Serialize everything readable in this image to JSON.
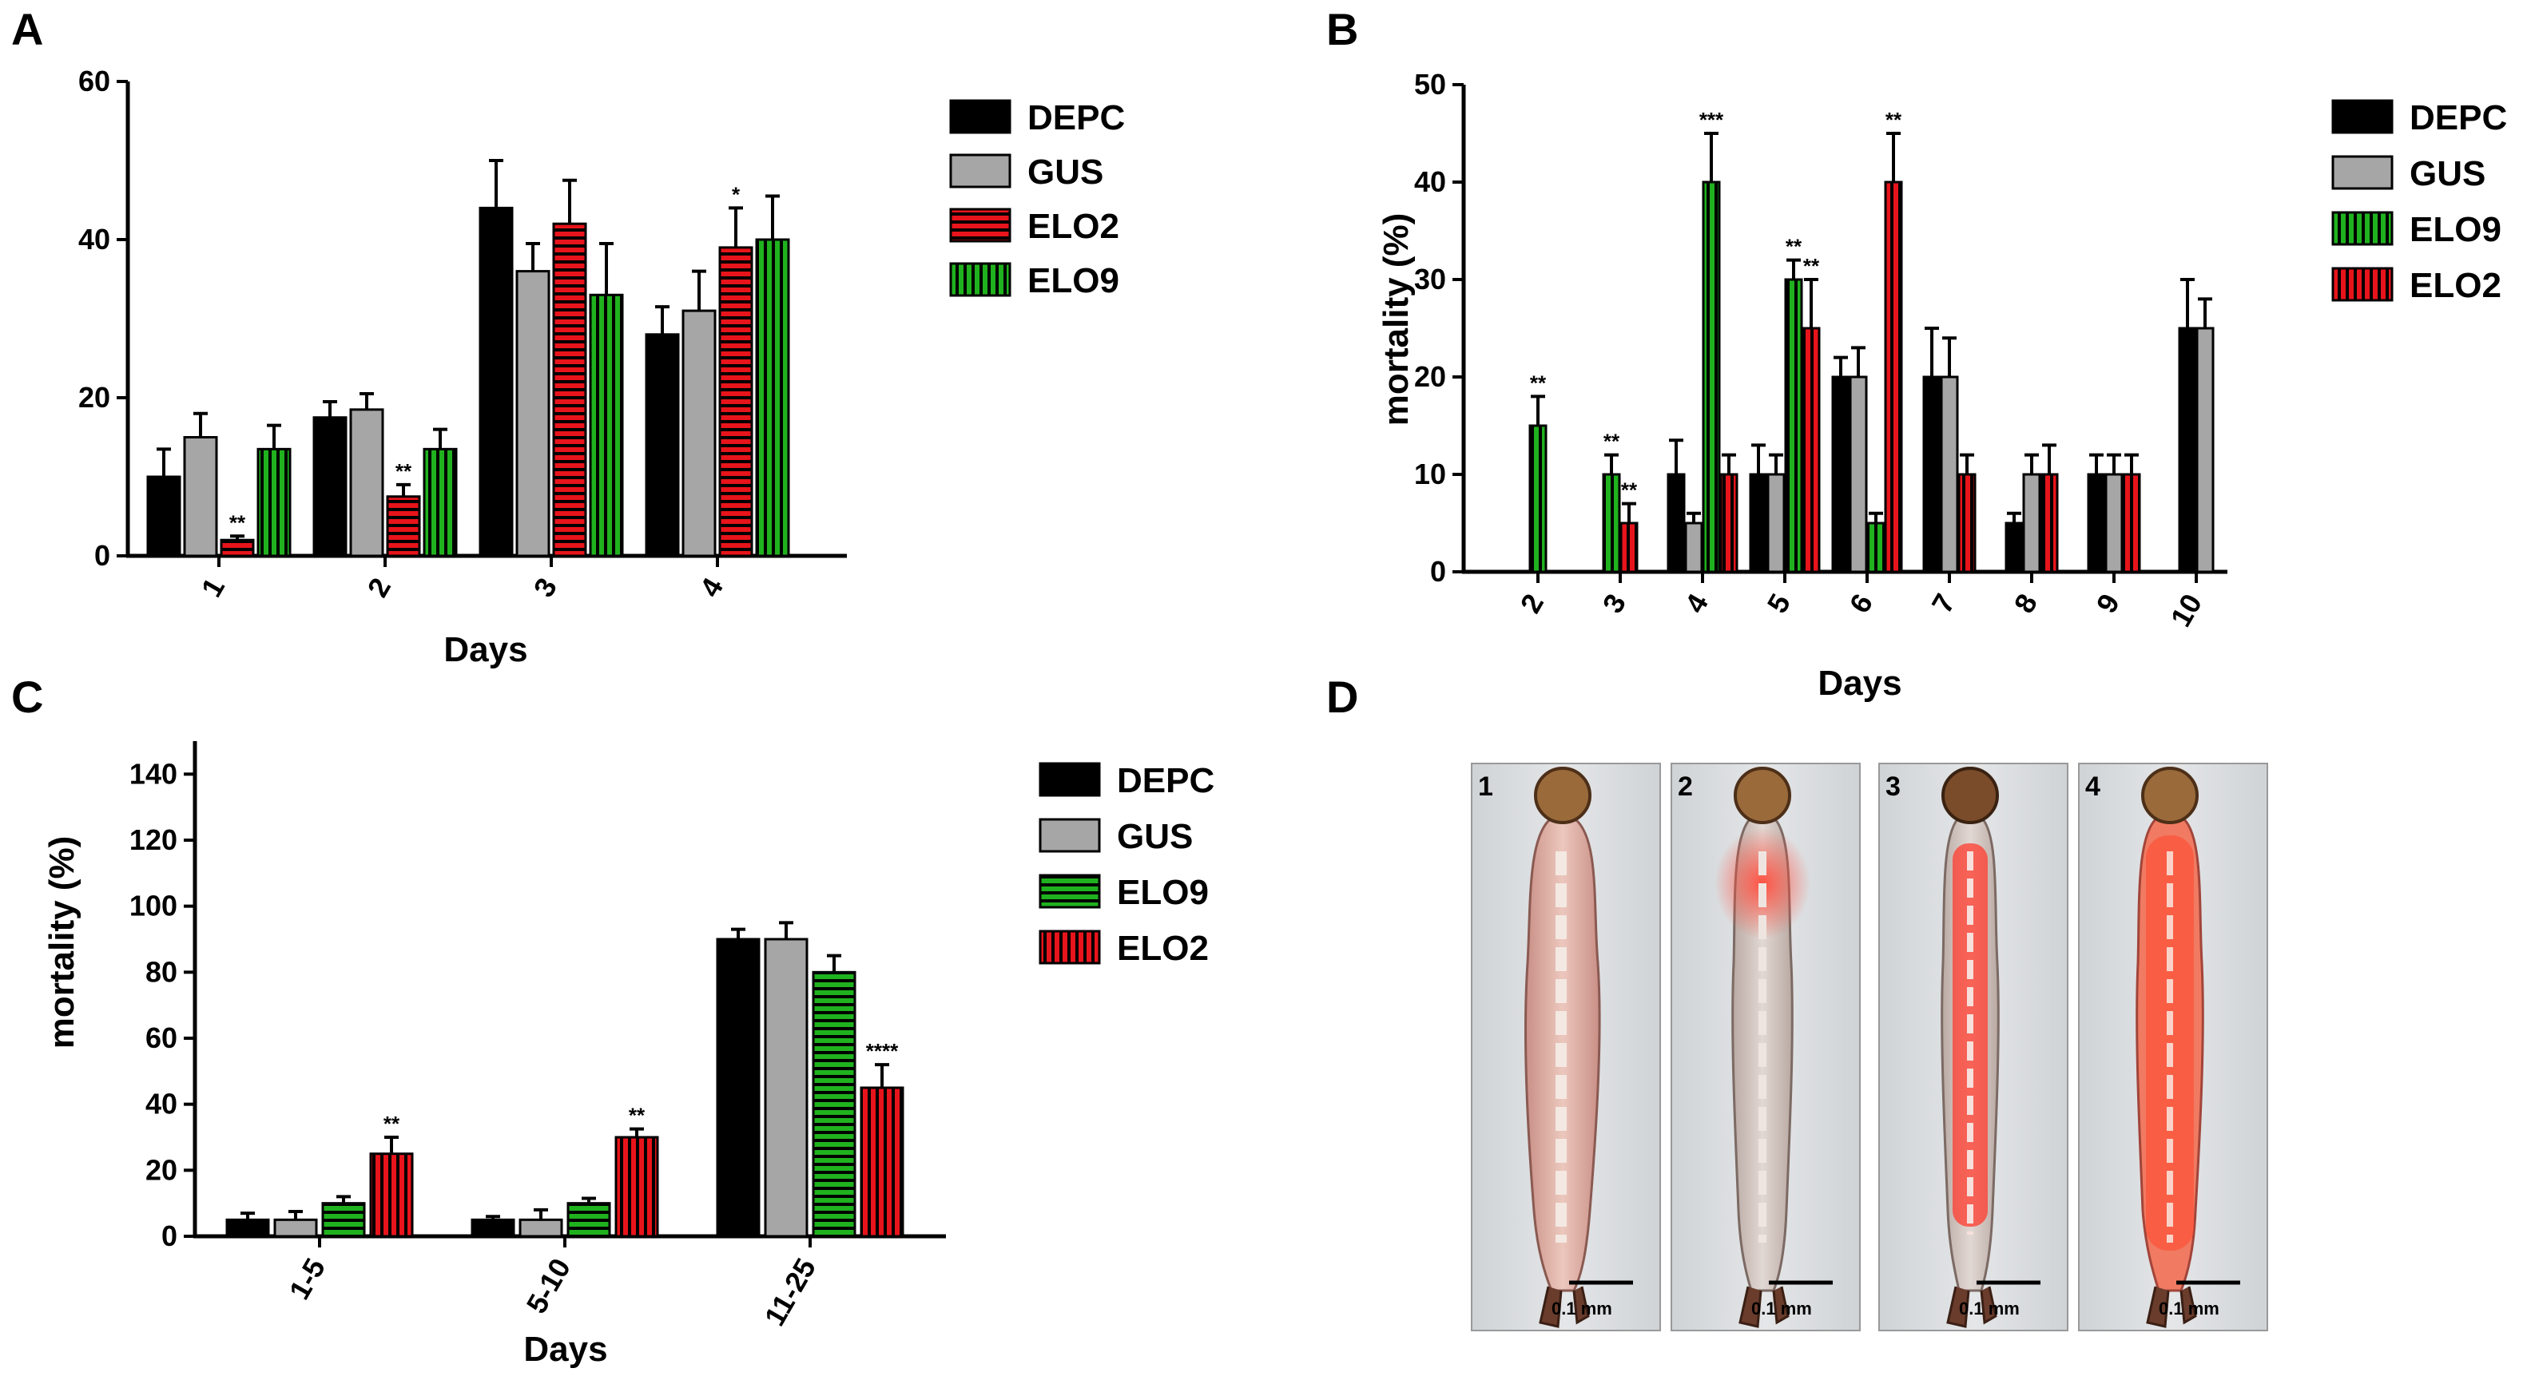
{
  "panels": {
    "a": {
      "letter": "A"
    },
    "b": {
      "letter": "B"
    },
    "c": {
      "letter": "C"
    },
    "d": {
      "letter": "D"
    }
  },
  "colors": {
    "DEPC": "#000000",
    "GUS": "#a6a6a6",
    "ELO2": "#e8141b",
    "ELO9": "#20b21e"
  },
  "chart_data": [
    {
      "id": "A",
      "type": "bar",
      "title": "",
      "xlabel": "Days",
      "ylabel": "",
      "ylim": [
        0,
        60
      ],
      "yticks": [
        0,
        20,
        40,
        60
      ],
      "categories": [
        "1",
        "2",
        "3",
        "4"
      ],
      "legend": [
        "DEPC",
        "GUS",
        "ELO2",
        "ELO9"
      ],
      "legend_position": "right",
      "series": [
        {
          "name": "DEPC",
          "pattern": "solid",
          "values": [
            10,
            17.5,
            44,
            28
          ],
          "errors": [
            3.5,
            2,
            6,
            3.5
          ]
        },
        {
          "name": "GUS",
          "pattern": "solid",
          "values": [
            15,
            18.5,
            36,
            31
          ],
          "errors": [
            3,
            2,
            3.5,
            5
          ]
        },
        {
          "name": "ELO2",
          "pattern": "horizontal",
          "values": [
            2,
            7.5,
            42,
            39
          ],
          "errors": [
            0.5,
            1.5,
            5.5,
            5
          ]
        },
        {
          "name": "ELO9",
          "pattern": "vertical",
          "values": [
            13.5,
            13.5,
            33,
            40
          ],
          "errors": [
            3,
            2.5,
            6.5,
            5.5
          ]
        }
      ],
      "annotations": [
        {
          "category": "1",
          "series": "ELO2",
          "text": "**"
        },
        {
          "category": "2",
          "series": "ELO2",
          "text": "**"
        },
        {
          "category": "4",
          "series": "ELO2",
          "text": "*"
        }
      ]
    },
    {
      "id": "B",
      "type": "bar",
      "title": "",
      "xlabel": "Days",
      "ylabel": "mortality (%)",
      "ylim": [
        0,
        50
      ],
      "yticks": [
        0,
        10,
        20,
        30,
        40,
        50
      ],
      "categories": [
        "2",
        "3",
        "4",
        "5",
        "6",
        "7",
        "8",
        "9",
        "10"
      ],
      "legend": [
        "DEPC",
        "GUS",
        "ELO9",
        "ELO2"
      ],
      "legend_position": "right",
      "series": [
        {
          "name": "DEPC",
          "pattern": "solid",
          "values": [
            0,
            0,
            10,
            10,
            20,
            20,
            5,
            10,
            25
          ],
          "errors": [
            0,
            0,
            3.5,
            3,
            2,
            5,
            1,
            2,
            5
          ]
        },
        {
          "name": "GUS",
          "pattern": "solid",
          "values": [
            0,
            0,
            5,
            10,
            20,
            20,
            10,
            10,
            25
          ],
          "errors": [
            0,
            0,
            1,
            2,
            3,
            4,
            2,
            2,
            3
          ]
        },
        {
          "name": "ELO9",
          "pattern": "vertical",
          "values": [
            15,
            10,
            40,
            30,
            5,
            0,
            0,
            0,
            0
          ],
          "errors": [
            3,
            2,
            5,
            2,
            1,
            0,
            0,
            0,
            0
          ]
        },
        {
          "name": "ELO2",
          "pattern": "vertical",
          "values": [
            0,
            5,
            10,
            25,
            40,
            10,
            10,
            10,
            0
          ],
          "errors": [
            0,
            2,
            2,
            5,
            5,
            2,
            3,
            2,
            0
          ]
        }
      ],
      "annotations": [
        {
          "category": "2",
          "series": "ELO9",
          "text": "**"
        },
        {
          "category": "3",
          "series": "ELO9",
          "text": "**"
        },
        {
          "category": "3",
          "series": "ELO2",
          "text": "**"
        },
        {
          "category": "4",
          "series": "ELO9",
          "text": "***"
        },
        {
          "category": "5",
          "series": "ELO9",
          "text": "**"
        },
        {
          "category": "5",
          "series": "ELO2",
          "text": "**"
        },
        {
          "category": "6",
          "series": "ELO2",
          "text": "**"
        }
      ]
    },
    {
      "id": "C",
      "type": "bar",
      "title": "",
      "xlabel": "Days",
      "ylabel": "mortality (%)",
      "ylim": [
        0,
        150
      ],
      "yticks": [
        0,
        20,
        40,
        60,
        80,
        100,
        120,
        140
      ],
      "categories": [
        "1-5",
        "5-10",
        "11-25"
      ],
      "legend": [
        "DEPC",
        "GUS",
        "ELO9",
        "ELO2"
      ],
      "legend_position": "right",
      "series": [
        {
          "name": "DEPC",
          "pattern": "solid",
          "values": [
            5,
            5,
            90
          ],
          "errors": [
            2,
            1,
            3
          ]
        },
        {
          "name": "GUS",
          "pattern": "solid",
          "values": [
            5,
            5,
            90
          ],
          "errors": [
            2.5,
            3,
            5
          ]
        },
        {
          "name": "ELO9",
          "pattern": "horizontal",
          "values": [
            10,
            10,
            80
          ],
          "errors": [
            2,
            1.5,
            5
          ]
        },
        {
          "name": "ELO2",
          "pattern": "vertical",
          "values": [
            25,
            30,
            45
          ],
          "errors": [
            5,
            2.5,
            7
          ]
        }
      ],
      "annotations": [
        {
          "category": "1-5",
          "series": "ELO2",
          "text": "**"
        },
        {
          "category": "5-10",
          "series": "ELO2",
          "text": "**"
        },
        {
          "category": "11-25",
          "series": "ELO2",
          "text": "****"
        }
      ]
    }
  ],
  "photos": {
    "items": [
      {
        "number": "1",
        "scale": "0.1 mm",
        "glow": "none"
      },
      {
        "number": "2",
        "scale": "0.1 mm",
        "glow": "head"
      },
      {
        "number": "3",
        "scale": "0.1 mm",
        "glow": "gut"
      },
      {
        "number": "4",
        "scale": "0.1 mm",
        "glow": "whole"
      }
    ]
  }
}
